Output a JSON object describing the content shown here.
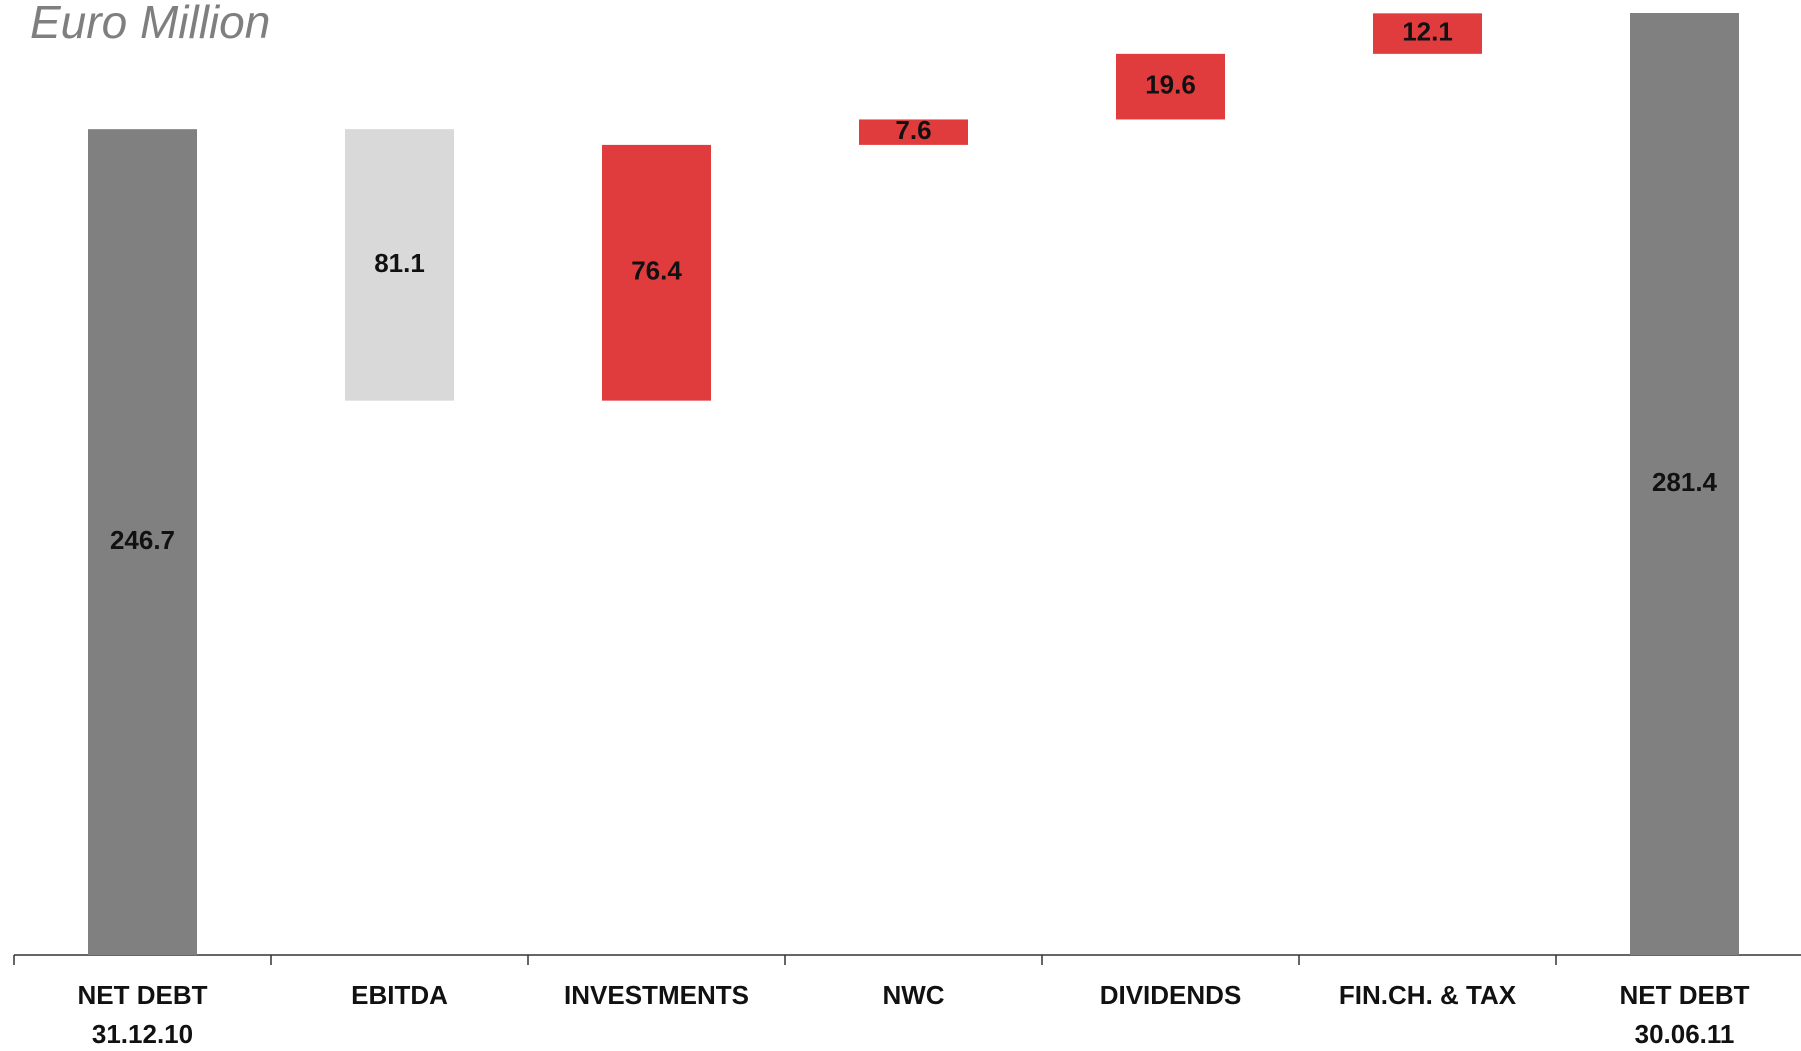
{
  "chart_data": {
    "type": "waterfall",
    "title": "Euro Million",
    "categories": [
      [
        "NET DEBT",
        "31.12.10"
      ],
      [
        "EBITDA"
      ],
      [
        "INVESTMENTS"
      ],
      [
        "NWC"
      ],
      [
        "DIVIDENDS"
      ],
      [
        "FIN.CH. & TAX"
      ],
      [
        "NET DEBT",
        "30.06.11"
      ]
    ],
    "values": [
      246.7,
      81.1,
      76.4,
      7.6,
      19.6,
      12.1,
      281.4
    ],
    "kinds": [
      "total",
      "decrease",
      "increase",
      "increase",
      "increase",
      "increase",
      "total"
    ],
    "colors": {
      "total": "#808080",
      "decrease": "#d9d9d9",
      "increase": "#e03c3e"
    }
  }
}
